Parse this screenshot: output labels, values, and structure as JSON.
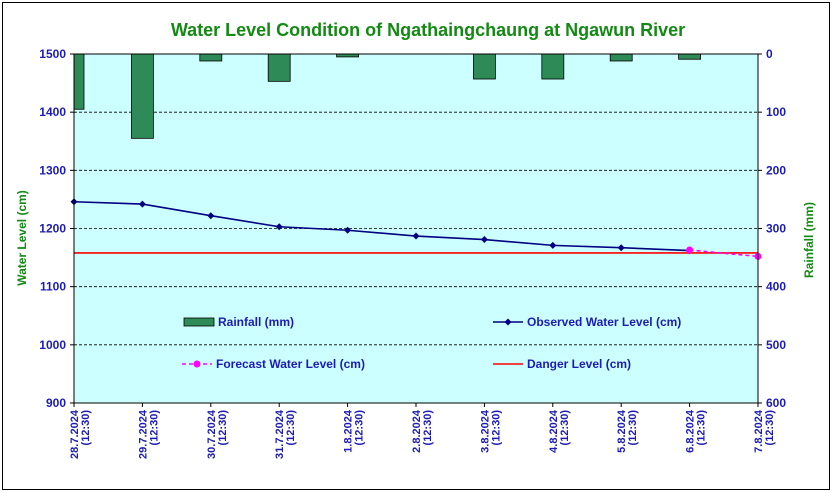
{
  "chart_data": {
    "type": "bar+line",
    "title": "Water Level Condition of  Ngathaingchaung at Ngawun River",
    "ylabel_left": "Water Level (cm)",
    "ylabel_right": "Rainfall (mm)",
    "ylim_left": [
      900,
      1500
    ],
    "ylim_right": [
      0,
      600
    ],
    "right_axis_inverted": true,
    "yticks_left": [
      "1500",
      "1400",
      "1300",
      "1200",
      "1100",
      "1000",
      "900"
    ],
    "yticks_right": [
      "0",
      "100",
      "200",
      "300",
      "400",
      "500",
      "600"
    ],
    "categories": [
      "28.7.2024 (12:30)",
      "29.7.2024 (12:30)",
      "30.7.2024 (12:30)",
      "31.7.2024 (12:30)",
      "1.8.2024 (12:30)",
      "2.8.2024 (12:30)",
      "3.8.2024 (12:30)",
      "4.8.2024 (12:30)",
      "5.8.2024 (12:30)",
      "6.8.2024 (12:30)",
      "7.8.2024 (12:30)"
    ],
    "grid": "horizontal dashed",
    "plot_background": "#ccffff",
    "series": [
      {
        "name": "Rainfall (mm)",
        "kind": "bar",
        "axis": "right",
        "color": "#2e8b57",
        "values": [
          95,
          145,
          12,
          47,
          5,
          0,
          43,
          43,
          12,
          9,
          0
        ]
      },
      {
        "name": "Observed Water Level (cm)",
        "kind": "line",
        "axis": "left",
        "color": "#000080",
        "values": [
          1246,
          1242,
          1222,
          1203,
          1197,
          1187,
          1181,
          1171,
          1167,
          1162,
          null
        ]
      },
      {
        "name": "Forecast Water Level (cm)",
        "kind": "line",
        "axis": "left",
        "style": "dashed",
        "color": "#ff00ff",
        "values": [
          null,
          null,
          null,
          null,
          null,
          null,
          null,
          null,
          null,
          1163,
          1152
        ]
      },
      {
        "name": "Danger Level (cm)",
        "kind": "line",
        "axis": "left",
        "color": "#ff0000",
        "values": [
          1158,
          1158,
          1158,
          1158,
          1158,
          1158,
          1158,
          1158,
          1158,
          1158,
          1158
        ]
      }
    ]
  }
}
